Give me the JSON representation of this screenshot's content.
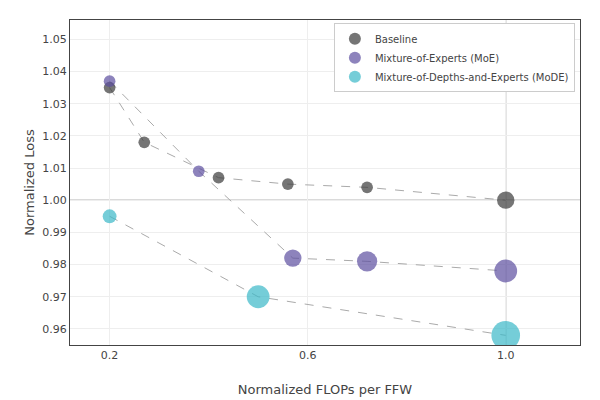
{
  "chart_data": {
    "type": "scatter",
    "xlabel": "Normalized FLOPs per FFW",
    "ylabel": "Normalized Loss",
    "xlim": [
      0.12,
      1.15
    ],
    "ylim": [
      0.955,
      1.056
    ],
    "xticks": [
      0.2,
      0.6,
      {
        "value": 1.0,
        "label": "1.0"
      }
    ],
    "yticks": [
      0.96,
      0.97,
      0.98,
      0.99,
      {
        "value": 1.0,
        "label": "1.00"
      },
      1.01,
      1.02,
      1.03,
      1.04,
      1.05
    ],
    "grid": true,
    "legend": "upper right",
    "hline": 1.0,
    "vline": 1.0,
    "series": [
      {
        "name": "Baseline",
        "color": "#3a3a3a",
        "marker": "circle",
        "line_style": "dashed",
        "x": [
          0.2,
          0.27,
          0.42,
          0.56,
          0.72,
          1.0
        ],
        "values": [
          1.035,
          1.018,
          1.007,
          1.005,
          1.004,
          1.0
        ],
        "sizes": [
          25,
          25,
          25,
          25,
          25,
          55
        ]
      },
      {
        "name": "Mixture-of-Experts (MoE)",
        "color": "#5c4fa0",
        "marker": "circle",
        "line_style": "dashed",
        "x": [
          0.2,
          0.38,
          0.57,
          0.72,
          1.0
        ],
        "values": [
          1.037,
          1.009,
          0.982,
          0.981,
          0.978
        ],
        "sizes": [
          25,
          25,
          55,
          75,
          95
        ]
      },
      {
        "name": "Mixture-of-Depths-and-Experts (MoDE)",
        "color": "#3ab8c8",
        "marker": "circle",
        "line_style": "dashed",
        "x": [
          0.2,
          0.5,
          1.0
        ],
        "values": [
          0.995,
          0.97,
          0.958
        ],
        "sizes": [
          35,
          95,
          150
        ]
      }
    ]
  }
}
